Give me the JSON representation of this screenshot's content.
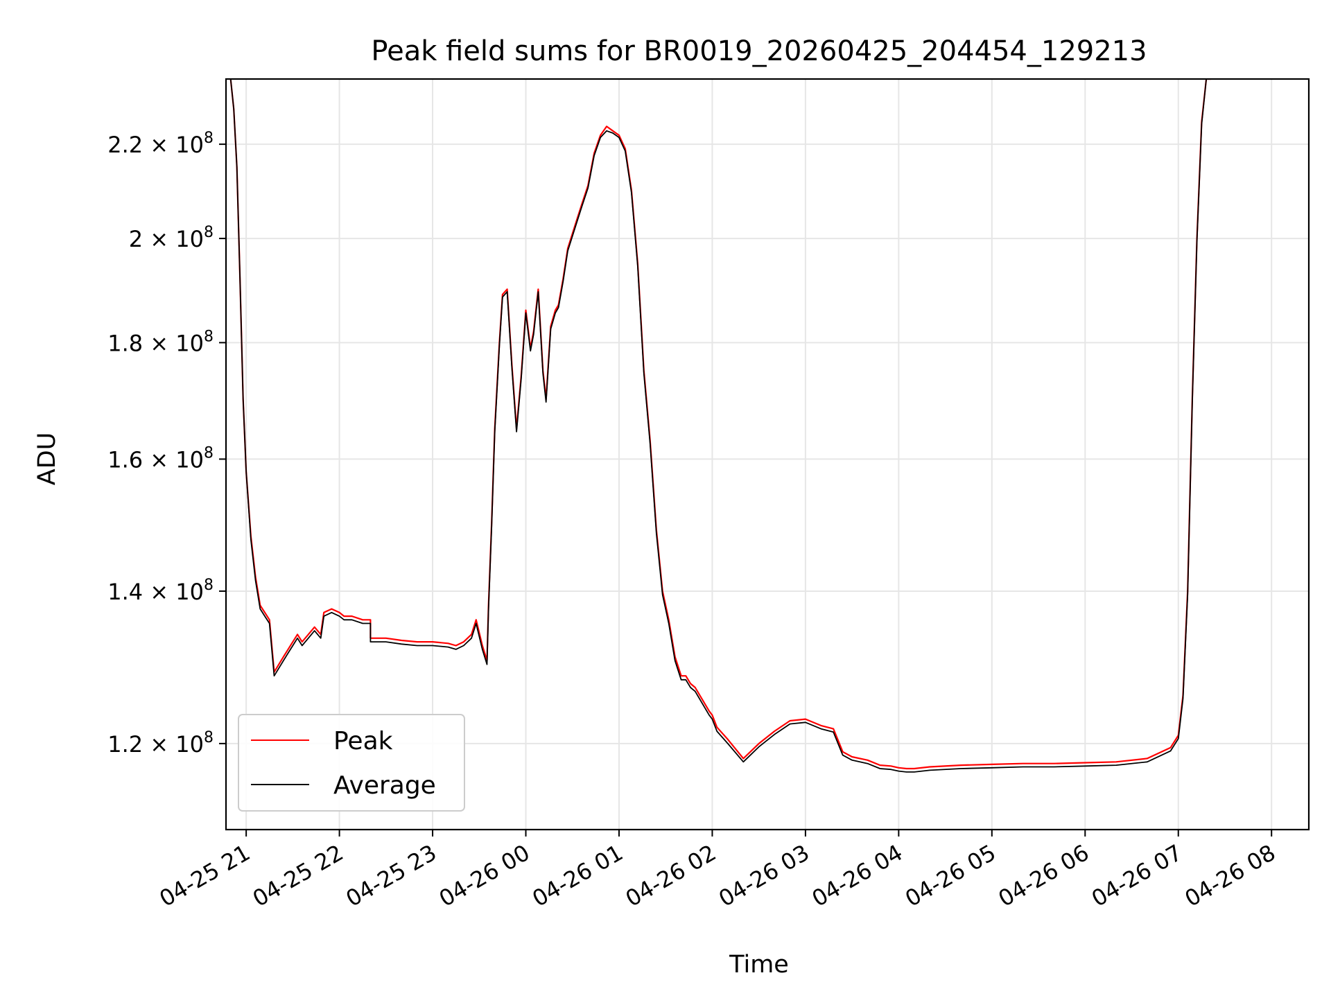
{
  "chart_data": {
    "type": "line",
    "title": "Peak field sums for BR0019_20260425_204454_129213",
    "xlabel": "Time",
    "ylabel": "ADU",
    "x_range": [
      "2026-04-25 20:47",
      "2026-04-26 08:24"
    ],
    "y_range": [
      110000000,
      235000000
    ],
    "y_scale": "log",
    "grid": true,
    "legend_position": "lower-left",
    "x_ticks": [
      {
        "label": "04-25 21",
        "value": "2026-04-25 21:00"
      },
      {
        "label": "04-25 22",
        "value": "2026-04-25 22:00"
      },
      {
        "label": "04-25 23",
        "value": "2026-04-25 23:00"
      },
      {
        "label": "04-26 00",
        "value": "2026-04-26 00:00"
      },
      {
        "label": "04-26 01",
        "value": "2026-04-26 01:00"
      },
      {
        "label": "04-26 02",
        "value": "2026-04-26 02:00"
      },
      {
        "label": "04-26 03",
        "value": "2026-04-26 03:00"
      },
      {
        "label": "04-26 04",
        "value": "2026-04-26 04:00"
      },
      {
        "label": "04-26 05",
        "value": "2026-04-26 05:00"
      },
      {
        "label": "04-26 06",
        "value": "2026-04-26 06:00"
      },
      {
        "label": "04-26 07",
        "value": "2026-04-26 07:00"
      },
      {
        "label": "04-26 08",
        "value": "2026-04-26 08:00"
      }
    ],
    "y_ticks": [
      {
        "mantissa": "1.2",
        "value": 120000000
      },
      {
        "mantissa": "1.4",
        "value": 140000000
      },
      {
        "mantissa": "1.6",
        "value": 160000000
      },
      {
        "mantissa": "1.8",
        "value": 180000000
      },
      {
        "mantissa": "2",
        "value": 200000000
      },
      {
        "mantissa": "2.2",
        "value": 220000000
      }
    ],
    "y_tick_suffix": "× 10",
    "y_tick_exponent": "8",
    "x": [
      "2026-04-25 20:50",
      "2026-04-25 20:52",
      "2026-04-25 20:54",
      "2026-04-25 20:56",
      "2026-04-25 20:58",
      "2026-04-25 21:00",
      "2026-04-25 21:03",
      "2026-04-25 21:06",
      "2026-04-25 21:09",
      "2026-04-25 21:12",
      "2026-04-25 21:15",
      "2026-04-25 21:18",
      "2026-04-25 21:21",
      "2026-04-25 21:24",
      "2026-04-25 21:27",
      "2026-04-25 21:30",
      "2026-04-25 21:33",
      "2026-04-25 21:36",
      "2026-04-25 21:40",
      "2026-04-25 21:44",
      "2026-04-25 21:48",
      "2026-04-25 21:50",
      "2026-04-25 21:55",
      "2026-04-25 22:00",
      "2026-04-25 22:03",
      "2026-04-25 22:08",
      "2026-04-25 22:15",
      "2026-04-25 22:20",
      "2026-04-25 22:20",
      "2026-04-25 22:30",
      "2026-04-25 22:40",
      "2026-04-25 22:50",
      "2026-04-25 23:00",
      "2026-04-25 23:10",
      "2026-04-25 23:15",
      "2026-04-25 23:20",
      "2026-04-25 23:25",
      "2026-04-25 23:28",
      "2026-04-25 23:32",
      "2026-04-25 23:35",
      "2026-04-25 23:36",
      "2026-04-25 23:38",
      "2026-04-25 23:40",
      "2026-04-25 23:43",
      "2026-04-25 23:45",
      "2026-04-25 23:48",
      "2026-04-25 23:51",
      "2026-04-25 23:54",
      "2026-04-25 23:57",
      "2026-04-26 00:00",
      "2026-04-26 00:03",
      "2026-04-26 00:05",
      "2026-04-26 00:08",
      "2026-04-26 00:11",
      "2026-04-26 00:13",
      "2026-04-26 00:16",
      "2026-04-26 00:19",
      "2026-04-26 00:21",
      "2026-04-26 00:24",
      "2026-04-26 00:27",
      "2026-04-26 00:30",
      "2026-04-26 00:33",
      "2026-04-26 00:36",
      "2026-04-26 00:40",
      "2026-04-26 00:44",
      "2026-04-26 00:48",
      "2026-04-26 00:52",
      "2026-04-26 00:56",
      "2026-04-26 01:00",
      "2026-04-26 01:04",
      "2026-04-26 01:08",
      "2026-04-26 01:12",
      "2026-04-26 01:16",
      "2026-04-26 01:20",
      "2026-04-26 01:24",
      "2026-04-26 01:28",
      "2026-04-26 01:32",
      "2026-04-26 01:36",
      "2026-04-26 01:40",
      "2026-04-26 01:43",
      "2026-04-26 01:46",
      "2026-04-26 01:49",
      "2026-04-26 01:52",
      "2026-04-26 01:55",
      "2026-04-26 01:58",
      "2026-04-26 02:00",
      "2026-04-26 02:03",
      "2026-04-26 02:10",
      "2026-04-26 02:20",
      "2026-04-26 02:30",
      "2026-04-26 02:40",
      "2026-04-26 02:50",
      "2026-04-26 03:00",
      "2026-04-26 03:10",
      "2026-04-26 03:18",
      "2026-04-26 03:24",
      "2026-04-26 03:30",
      "2026-04-26 03:40",
      "2026-04-26 03:48",
      "2026-04-26 03:55",
      "2026-04-26 04:00",
      "2026-04-26 04:05",
      "2026-04-26 04:10",
      "2026-04-26 04:20",
      "2026-04-26 04:40",
      "2026-04-26 05:00",
      "2026-04-26 05:20",
      "2026-04-26 05:40",
      "2026-04-26 06:00",
      "2026-04-26 06:20",
      "2026-04-26 06:40",
      "2026-04-26 06:55",
      "2026-04-26 07:00",
      "2026-04-26 07:03",
      "2026-04-26 07:06",
      "2026-04-26 07:09",
      "2026-04-26 07:12",
      "2026-04-26 07:15",
      "2026-04-26 07:18",
      "2026-04-26 07:21"
    ],
    "series": [
      {
        "name": "Peak",
        "color": "#ff0000",
        "values": [
          235000000,
          228000000,
          215000000,
          192000000,
          170000000,
          158000000,
          148000000,
          142000000,
          138000000,
          137000000,
          136000000,
          129000000,
          130000000,
          131000000,
          132000000,
          133000000,
          134000000,
          133000000,
          134000000,
          135000000,
          134000000,
          137000000,
          137500000,
          137000000,
          136500000,
          136500000,
          136000000,
          136000000,
          133500000,
          133500000,
          133200000,
          133000000,
          133000000,
          132800000,
          132500000,
          133000000,
          134000000,
          136000000,
          132500000,
          130500000,
          138000000,
          150000000,
          165000000,
          180000000,
          189000000,
          190000000,
          176000000,
          165000000,
          174000000,
          186000000,
          179000000,
          182000000,
          190000000,
          175000000,
          170000000,
          183000000,
          186000000,
          187000000,
          192000000,
          198000000,
          201000000,
          204000000,
          207000000,
          211000000,
          218000000,
          222000000,
          224000000,
          223000000,
          222000000,
          219000000,
          210000000,
          195000000,
          175000000,
          163000000,
          149000000,
          140000000,
          136000000,
          131000000,
          128500000,
          128500000,
          127500000,
          127000000,
          126000000,
          125000000,
          124000000,
          123500000,
          122000000,
          120500000,
          118200000,
          120000000,
          121500000,
          122800000,
          123000000,
          122200000,
          121800000,
          119000000,
          118400000,
          118000000,
          117400000,
          117300000,
          117100000,
          117000000,
          117000000,
          117200000,
          117400000,
          117500000,
          117600000,
          117600000,
          117700000,
          117800000,
          118200000,
          119500000,
          121000000,
          126000000,
          140000000,
          170000000,
          200000000,
          225000000,
          235000000,
          235000000
        ]
      },
      {
        "name": "Average",
        "color": "#000000",
        "values": [
          235000000,
          228000000,
          215000000,
          192000000,
          170000000,
          158000000,
          147500000,
          141500000,
          137500000,
          136500000,
          135500000,
          128500000,
          129500000,
          130500000,
          131500000,
          132500000,
          133500000,
          132500000,
          133500000,
          134500000,
          133500000,
          136500000,
          137000000,
          136500000,
          136000000,
          136000000,
          135500000,
          135500000,
          133000000,
          133000000,
          132700000,
          132500000,
          132500000,
          132300000,
          132000000,
          132500000,
          133500000,
          135500000,
          132000000,
          130000000,
          137500000,
          149500000,
          164500000,
          179500000,
          188500000,
          189500000,
          175500000,
          164500000,
          173500000,
          185500000,
          178500000,
          181500000,
          189500000,
          174500000,
          169500000,
          182500000,
          185500000,
          186500000,
          191500000,
          197500000,
          200500000,
          203500000,
          206500000,
          210500000,
          217500000,
          221500000,
          223000000,
          222500000,
          221500000,
          218500000,
          209500000,
          194500000,
          174500000,
          162500000,
          148500000,
          139500000,
          135500000,
          130500000,
          128000000,
          128000000,
          127000000,
          126500000,
          125500000,
          124500000,
          123500000,
          123000000,
          121500000,
          120000000,
          117800000,
          119600000,
          121100000,
          122400000,
          122600000,
          121800000,
          121400000,
          118600000,
          118000000,
          117600000,
          117000000,
          116900000,
          116700000,
          116600000,
          116600000,
          116800000,
          117000000,
          117100000,
          117200000,
          117200000,
          117300000,
          117400000,
          117800000,
          119100000,
          120600000,
          125600000,
          139500000,
          169500000,
          199500000,
          224500000,
          235000000,
          235000000
        ]
      }
    ]
  }
}
